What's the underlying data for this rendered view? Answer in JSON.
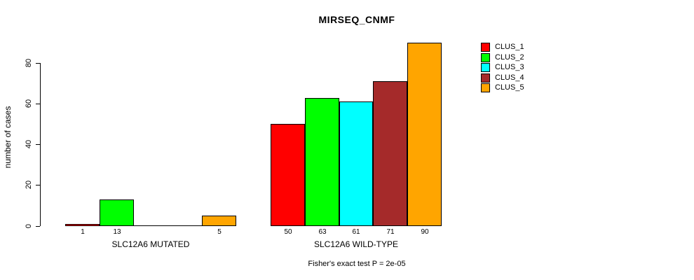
{
  "chart_data": {
    "type": "bar",
    "title": "MIRSEQ_CNMF",
    "ylabel": "number of cases",
    "xlabel": "",
    "yticks": [
      0,
      20,
      40,
      60,
      80
    ],
    "ylim": [
      0,
      90
    ],
    "grid": false,
    "legend_position": "right-inside",
    "categories": [
      "SLC12A6 MUTATED",
      "SLC12A6 WILD-TYPE"
    ],
    "series": [
      {
        "name": "CLUS_1",
        "color": "#FF0000",
        "values": [
          1,
          50
        ]
      },
      {
        "name": "CLUS_2",
        "color": "#00FF00",
        "values": [
          13,
          63
        ]
      },
      {
        "name": "CLUS_3",
        "color": "#00FFFF",
        "values": [
          0,
          61
        ]
      },
      {
        "name": "CLUS_4",
        "color": "#A52A2A",
        "values": [
          0,
          71
        ]
      },
      {
        "name": "CLUS_5",
        "color": "#FFA500",
        "values": [
          5,
          90
        ]
      }
    ],
    "bar_value_labels": [
      [
        "1",
        "13",
        "",
        "",
        "5"
      ],
      [
        "50",
        "63",
        "61",
        "71",
        "90"
      ]
    ],
    "annotation": "Fisher's exact test P = 2e-05"
  }
}
